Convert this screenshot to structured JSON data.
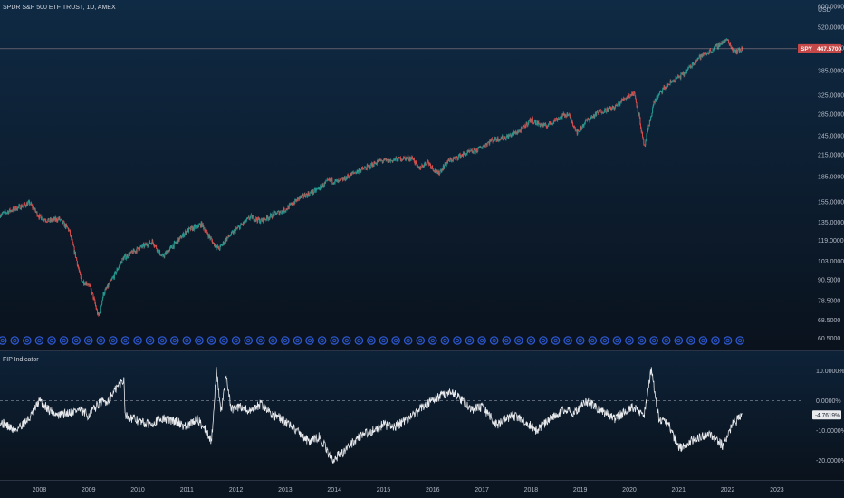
{
  "chart_data": [
    {
      "type": "candlestick",
      "title": "SPDR S&P 500 ETF TRUST, 1D, AMEX",
      "scale": "log",
      "ylim": [
        57,
        600
      ],
      "y_ticks": [
        "600.0000",
        "520.0000",
        "450.0000",
        "385.0000",
        "325.0000",
        "285.0000",
        "245.0000",
        "215.0000",
        "185.0000",
        "155.0000",
        "135.0000",
        "119.0000",
        "103.0000",
        "90.5000",
        "78.5000",
        "68.5000",
        "60.5000"
      ],
      "y_tick_values": [
        600,
        520,
        450,
        385,
        325,
        285,
        245,
        215,
        185,
        155,
        135,
        119,
        103,
        90.5,
        78.5,
        68.5,
        60.5
      ],
      "unit_top": "USD",
      "last_price": {
        "symbol": "SPY",
        "value": "447.5700",
        "numeric": 447.57
      },
      "x_ticks": [
        "2008",
        "2009",
        "2010",
        "2011",
        "2012",
        "2013",
        "2014",
        "2015",
        "2016",
        "2017",
        "2018",
        "2019",
        "2020",
        "2021",
        "2022",
        "2023"
      ],
      "xlim": [
        2007.2,
        2023.5
      ],
      "series": [
        {
          "x": [
            2007.2,
            2007.4,
            2007.6,
            2007.8,
            2008.0,
            2008.2,
            2008.4,
            2008.6,
            2008.75,
            2008.85,
            2009.0,
            2009.1,
            2009.2,
            2009.3,
            2009.5,
            2009.7,
            2010.0,
            2010.3,
            2010.5,
            2010.8,
            2011.0,
            2011.3,
            2011.55,
            2011.65,
            2011.8,
            2012.0,
            2012.3,
            2012.5,
            2012.8,
            2013.0,
            2013.3,
            2013.6,
            2013.9,
            2014.1,
            2014.4,
            2014.7,
            2014.9,
            2015.1,
            2015.4,
            2015.6,
            2015.7,
            2015.9,
            2016.1,
            2016.3,
            2016.6,
            2016.9,
            2017.2,
            2017.5,
            2017.8,
            2018.0,
            2018.1,
            2018.3,
            2018.6,
            2018.75,
            2018.95,
            2019.1,
            2019.4,
            2019.7,
            2019.9,
            2020.1,
            2020.2,
            2020.3,
            2020.5,
            2020.7,
            2020.9,
            2021.1,
            2021.4,
            2021.7,
            2021.9,
            2022.0,
            2022.1,
            2022.2,
            2022.3
          ],
          "values": [
            142,
            146,
            150,
            154,
            140,
            136,
            138,
            128,
            105,
            90,
            88,
            80,
            70,
            82,
            92,
            105,
            112,
            118,
            106,
            118,
            127,
            133,
            116,
            112,
            120,
            128,
            140,
            136,
            143,
            147,
            160,
            167,
            180,
            178,
            190,
            198,
            206,
            206,
            210,
            210,
            195,
            205,
            188,
            205,
            215,
            222,
            238,
            243,
            255,
            275,
            268,
            262,
            280,
            285,
            250,
            270,
            290,
            298,
            318,
            330,
            280,
            225,
            310,
            340,
            360,
            375,
            420,
            445,
            470,
            475,
            445,
            440,
            447.57
          ]
        }
      ]
    },
    {
      "type": "line",
      "title": "FIP Indicator",
      "ylim": [
        -26,
        16
      ],
      "y_ticks": [
        "10.0000%",
        "0.0000%",
        "-10.0000%",
        "-20.0000%"
      ],
      "y_tick_values": [
        10,
        0,
        -10,
        -20
      ],
      "last_value": {
        "value": "-4.7619%",
        "numeric": -4.7619
      },
      "series": [
        {
          "x": [
            2007.2,
            2007.5,
            2007.8,
            2008.0,
            2008.2,
            2008.4,
            2008.6,
            2008.8,
            2009.0,
            2009.2,
            2009.4,
            2009.6,
            2009.72,
            2009.75,
            2009.9,
            2010.2,
            2010.5,
            2010.8,
            2011.0,
            2011.2,
            2011.4,
            2011.5,
            2011.6,
            2011.7,
            2011.8,
            2011.9,
            2012.1,
            2012.3,
            2012.5,
            2012.7,
            2012.9,
            2013.1,
            2013.3,
            2013.5,
            2013.7,
            2013.95,
            2014.2,
            2014.5,
            2014.8,
            2015.0,
            2015.2,
            2015.4,
            2015.6,
            2015.8,
            2016.0,
            2016.2,
            2016.4,
            2016.6,
            2016.8,
            2017.0,
            2017.3,
            2017.6,
            2017.9,
            2018.1,
            2018.4,
            2018.7,
            2018.9,
            2019.1,
            2019.4,
            2019.7,
            2019.9,
            2020.1,
            2020.3,
            2020.45,
            2020.6,
            2020.8,
            2021.0,
            2021.3,
            2021.6,
            2021.9,
            2022.1,
            2022.3
          ],
          "values": [
            -7,
            -10,
            -6,
            0,
            -3,
            -5,
            -4,
            -3,
            -5,
            -1,
            0,
            5,
            7,
            -5,
            -6,
            -8,
            -6,
            -7,
            -9,
            -6,
            -10,
            -14,
            10,
            -4,
            9,
            -3,
            -2,
            -4,
            -1,
            -4,
            -6,
            -8,
            -11,
            -14,
            -12,
            -20,
            -17,
            -12,
            -10,
            -8,
            -9,
            -7,
            -5,
            -2,
            0,
            2,
            3,
            0,
            -3,
            -2,
            -8,
            -5,
            -7,
            -10,
            -6,
            -3,
            -4,
            0,
            -3,
            -6,
            -4,
            -2,
            -5,
            11,
            -6,
            -8,
            -16,
            -13,
            -11,
            -15,
            -8,
            -4.76
          ]
        }
      ]
    }
  ],
  "icons": {
    "event_marker": "dividend-circle-icon"
  },
  "colors": {
    "background_top": "#0e2840",
    "background_bottom": "#0b121c",
    "candle_up": "#26a69a",
    "candle_down": "#ef5350",
    "price_line": "#b9bec8",
    "indicator_line": "#e8eaed",
    "price_tag": "#c44848",
    "event_marker": "#2f5ad8",
    "grid": "#7a8496"
  }
}
